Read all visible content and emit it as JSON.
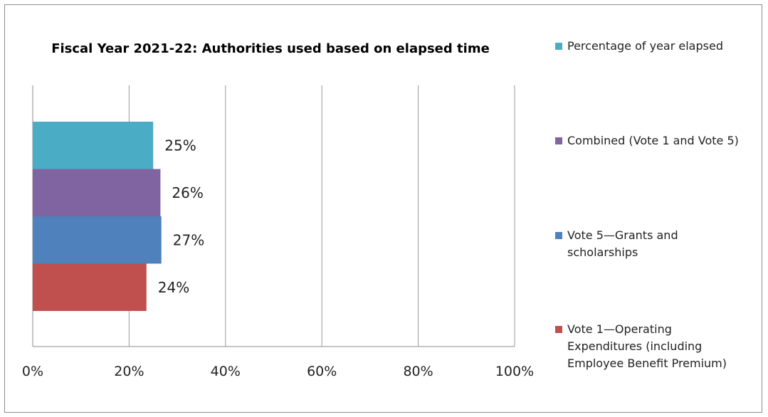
{
  "chart_data": {
    "type": "bar",
    "orientation": "horizontal",
    "title": "Fiscal Year 2021-22: Authorities used based on elapsed time",
    "xlabel": "",
    "ylabel": "",
    "xlim": [
      0,
      100
    ],
    "x_ticks": [
      0,
      20,
      40,
      60,
      80,
      100
    ],
    "x_tick_labels": [
      "0%",
      "20%",
      "40%",
      "60%",
      "80%",
      "100%"
    ],
    "grid": true,
    "legend_position": "right",
    "series": [
      {
        "name": "Percentage of year elapsed",
        "value": 25,
        "label": "25%",
        "color": "#4bacc6"
      },
      {
        "name": "Combined (Vote 1 and Vote 5)",
        "value": 26.5,
        "label": "26%",
        "color": "#8064a2"
      },
      {
        "name": "Vote 5—Grants and scholarships",
        "value": 26.7,
        "label": "27%",
        "color": "#4f81bd"
      },
      {
        "name": "Vote 1—Operating Expenditures (including Employee Benefit Premium)",
        "value": 23.6,
        "label": "24%",
        "color": "#c0504d"
      }
    ],
    "legend_entries": [
      {
        "series_index": 0,
        "lines": [
          "Percentage of year elapsed"
        ]
      },
      {
        "series_index": 1,
        "lines": [
          "Combined (Vote 1 and Vote 5)"
        ]
      },
      {
        "series_index": 2,
        "lines": [
          "Vote 5—Grants and",
          "scholarships"
        ]
      },
      {
        "series_index": 3,
        "lines": [
          "Vote 1—Operating",
          "Expenditures (including",
          "Employee Benefit Premium)"
        ]
      }
    ]
  }
}
